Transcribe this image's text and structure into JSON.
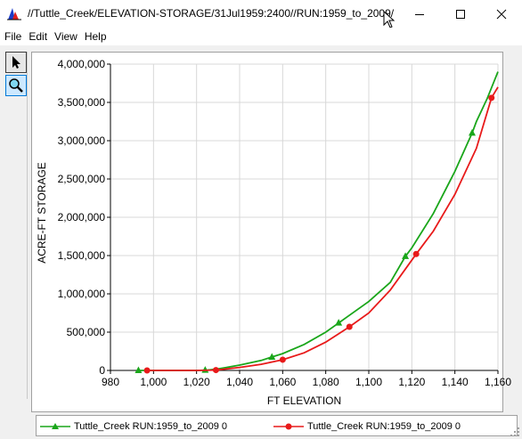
{
  "window": {
    "title": "//Tuttle_Creek/ELEVATION-STORAGE/31Jul1959:2400//RUN:1959_to_2009/",
    "minimize_icon": "minimize-icon",
    "maximize_icon": "maximize-icon",
    "close_icon": "close-icon"
  },
  "menu": {
    "items": [
      "File",
      "Edit",
      "View",
      "Help"
    ]
  },
  "toolbar": {
    "tools": [
      {
        "name": "pointer",
        "icon": "pointer-icon"
      },
      {
        "name": "zoom",
        "icon": "magnifier-icon"
      }
    ]
  },
  "chart_data": {
    "type": "line",
    "xlabel": "FT ELEVATION",
    "ylabel": "ACRE-FT STORAGE",
    "xlim": [
      980,
      1160
    ],
    "ylim": [
      0,
      4000000
    ],
    "x_ticks": [
      "980",
      "1,000",
      "1,020",
      "1,040",
      "1,060",
      "1,080",
      "1,100",
      "1,120",
      "1,140",
      "1,160"
    ],
    "y_ticks": [
      "0",
      "500,000",
      "1,000,000",
      "1,500,000",
      "2,000,000",
      "2,500,000",
      "3,000,000",
      "3,500,000",
      "4,000,000"
    ],
    "grid": true,
    "legend_position": "bottom",
    "series": [
      {
        "name": "Tuttle_Creek RUN:1959_to_2009  0",
        "color": "#1aa61a",
        "marker": "triangle",
        "x": [
          993,
          1000,
          1010,
          1020,
          1025,
          1030,
          1040,
          1050,
          1055,
          1060,
          1070,
          1080,
          1086,
          1090,
          1100,
          1110,
          1117,
          1120,
          1130,
          1140,
          1148,
          1150,
          1155,
          1160
        ],
        "y": [
          0,
          0,
          0,
          0,
          5000,
          20000,
          70000,
          130000,
          175000,
          220000,
          340000,
          500000,
          620000,
          700000,
          900000,
          1150000,
          1490000,
          1600000,
          2050000,
          2600000,
          3100000,
          3250000,
          3550000,
          3900000
        ],
        "marker_x": [
          993,
          1024,
          1055,
          1086,
          1117,
          1148
        ]
      },
      {
        "name": "Tuttle_Creek RUN:1959_to_2009  0",
        "color": "#e81a1a",
        "marker": "circle",
        "x": [
          997,
          1000,
          1010,
          1020,
          1029,
          1040,
          1050,
          1060,
          1070,
          1080,
          1091,
          1100,
          1110,
          1122,
          1130,
          1140,
          1150,
          1157,
          1160
        ],
        "y": [
          0,
          0,
          0,
          0,
          5000,
          40000,
          80000,
          140000,
          230000,
          370000,
          570000,
          750000,
          1050000,
          1520000,
          1820000,
          2300000,
          2900000,
          3560000,
          3700000
        ],
        "marker_x": [
          997,
          1029,
          1060,
          1091,
          1122,
          1157
        ]
      }
    ]
  }
}
